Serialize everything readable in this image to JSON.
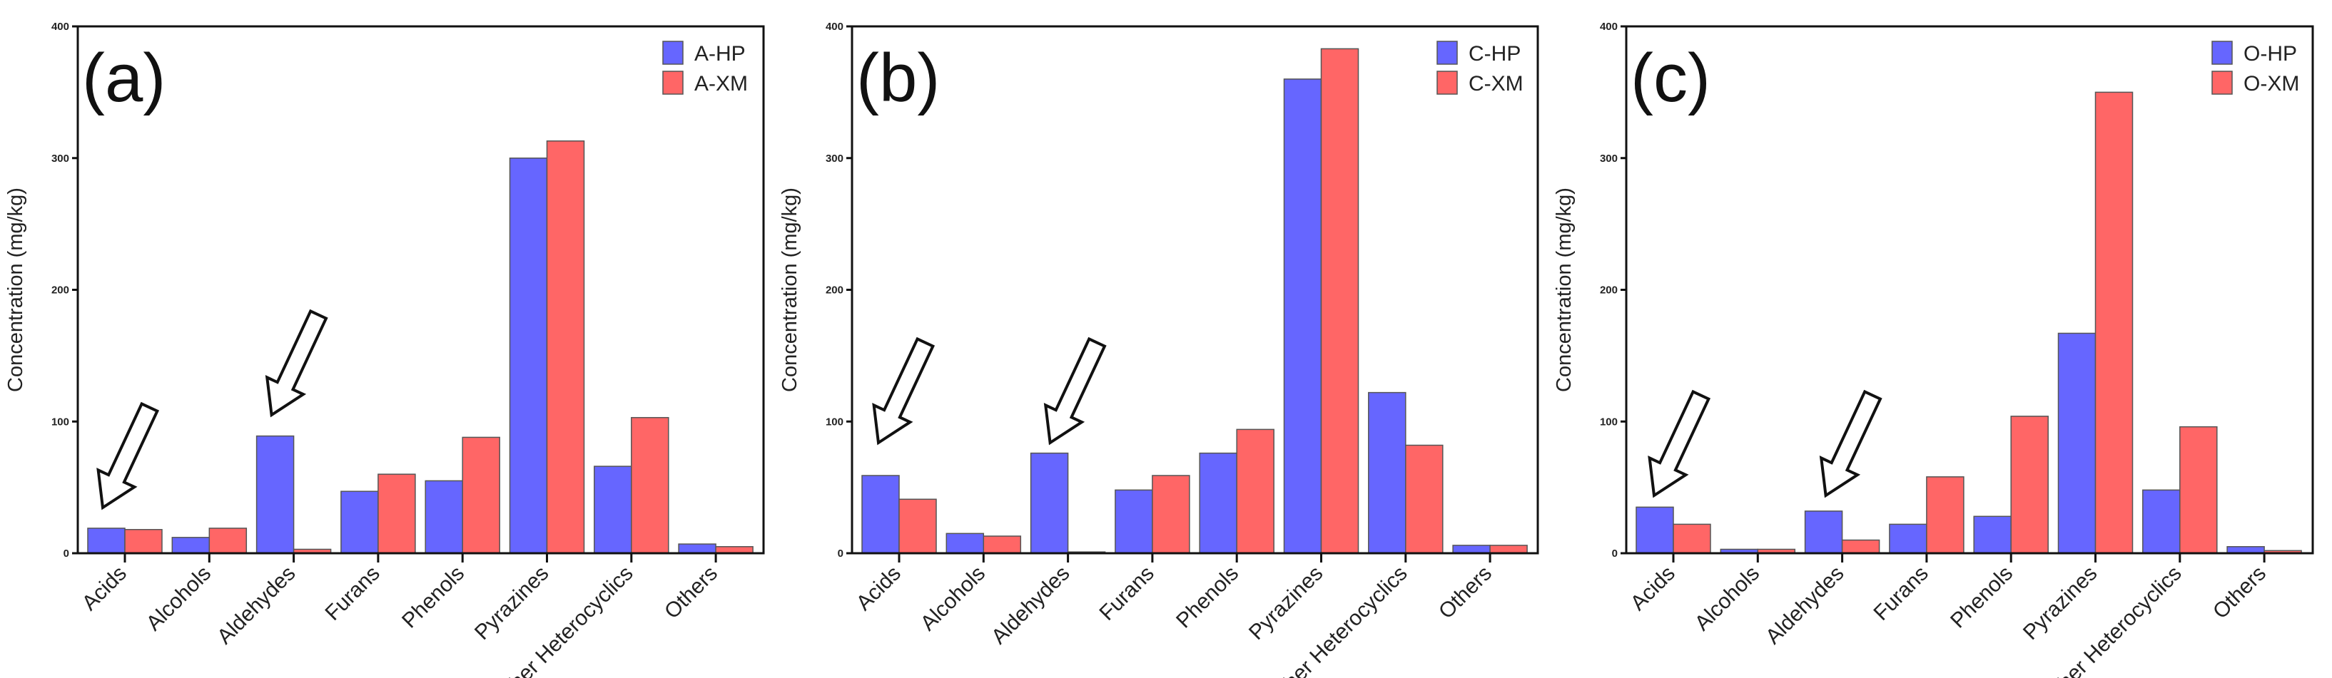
{
  "chart_data": [
    {
      "type": "bar",
      "panel_label": "(a)",
      "ylabel": "Concentration (mg/kg)",
      "xlabel": "",
      "ylim": [
        0,
        400
      ],
      "yticks": [
        0,
        100,
        200,
        300,
        400
      ],
      "grid": false,
      "legend": "top-right",
      "categories": [
        "Acids",
        "Alcohols",
        "Aldehydes",
        "Furans",
        "Phenols",
        "Pyrazines",
        "Other Heterocyclics",
        "Others"
      ],
      "series": [
        {
          "name": "A-HP",
          "color": "#6666ff",
          "values": [
            19,
            12,
            89,
            47,
            55,
            300,
            66,
            7
          ]
        },
        {
          "name": "A-XM",
          "color": "#ff6666",
          "values": [
            18,
            19,
            3,
            60,
            88,
            313,
            103,
            5
          ]
        }
      ],
      "arrows_on": [
        "Acids",
        "Aldehydes"
      ]
    },
    {
      "type": "bar",
      "panel_label": "(b)",
      "ylabel": "Concentration (mg/kg)",
      "xlabel": "",
      "ylim": [
        0,
        400
      ],
      "yticks": [
        0,
        100,
        200,
        300,
        400
      ],
      "grid": false,
      "legend": "top-right",
      "categories": [
        "Acids",
        "Alcohols",
        "Aldehydes",
        "Furans",
        "Phenols",
        "Pyrazines",
        "Other Heterocyclics",
        "Others"
      ],
      "series": [
        {
          "name": "C-HP",
          "color": "#6666ff",
          "values": [
            59,
            15,
            76,
            48,
            76,
            360,
            122,
            6
          ]
        },
        {
          "name": "C-XM",
          "color": "#ff6666",
          "values": [
            41,
            13,
            1,
            59,
            94,
            383,
            82,
            6
          ]
        }
      ],
      "arrows_on": [
        "Acids",
        "Aldehydes"
      ]
    },
    {
      "type": "bar",
      "panel_label": "(c)",
      "ylabel": "Concentration (mg/kg)",
      "xlabel": "",
      "ylim": [
        0,
        400
      ],
      "yticks": [
        0,
        100,
        200,
        300,
        400
      ],
      "grid": false,
      "legend": "top-right",
      "categories": [
        "Acids",
        "Alcohols",
        "Aldehydes",
        "Furans",
        "Phenols",
        "Pyrazines",
        "Other Heterocyclics",
        "Others"
      ],
      "series": [
        {
          "name": "O-HP",
          "color": "#6666ff",
          "values": [
            35,
            3,
            32,
            22,
            28,
            167,
            48,
            5
          ]
        },
        {
          "name": "O-XM",
          "color": "#ff6666",
          "values": [
            22,
            3,
            10,
            58,
            104,
            350,
            96,
            2
          ]
        }
      ],
      "arrows_on": [
        "Acids",
        "Aldehydes"
      ]
    }
  ]
}
